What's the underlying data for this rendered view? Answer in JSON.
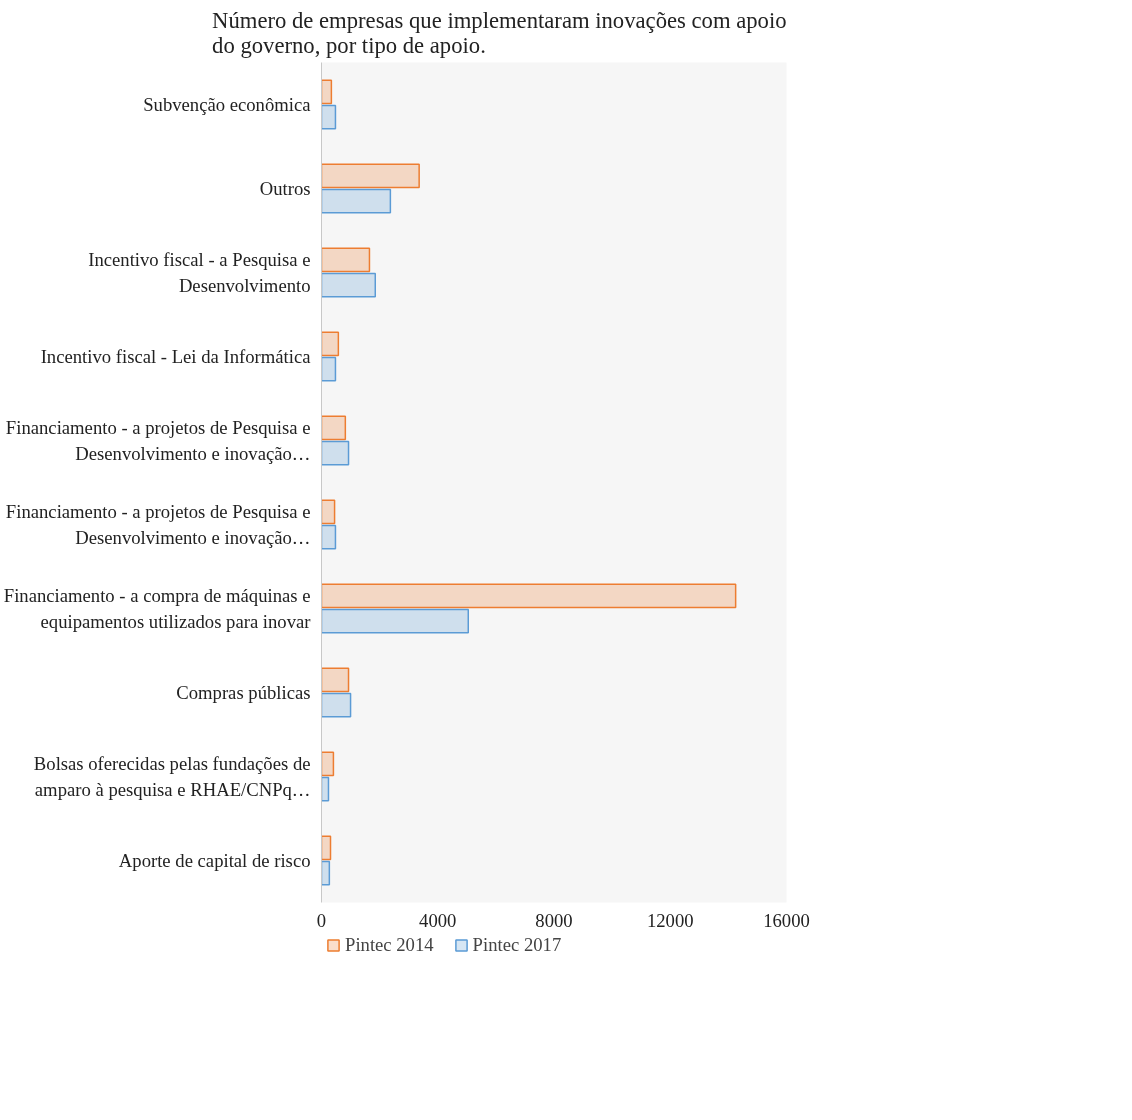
{
  "chart_data": {
    "type": "bar",
    "orientation": "horizontal",
    "title": "Número de empresas que implementaram inovações com apoio do governo, por tipo de apoio.",
    "categories": [
      "Subvenção econômica",
      "Outros",
      "Incentivo fiscal - a Pesquisa e Desenvolvimento",
      "Incentivo fiscal - Lei da Informática",
      "Financiamento - a projetos de Pesquisa e Desenvolvimento e inovação…",
      "Financiamento - a projetos de Pesquisa e Desenvolvimento e inovação…",
      "Financiamento - a compra de máquinas e equipamentos utilizados para inovar",
      "Compras públicas",
      "Bolsas oferecidas pelas fundações de amparo à pesquisa e RHAE/CNPq…",
      "Aporte de capital de risco"
    ],
    "series": [
      {
        "name": "Pintec 2014",
        "color": "#ed7d31",
        "values": [
          340,
          3360,
          1650,
          580,
          820,
          450,
          14250,
          930,
          410,
          310
        ]
      },
      {
        "name": "Pintec 2017",
        "color": "#5b9bd5",
        "values": [
          480,
          2370,
          1850,
          480,
          930,
          480,
          5050,
          1000,
          240,
          270
        ]
      }
    ],
    "xlim": [
      0,
      16000
    ],
    "xticks": [
      0,
      4000,
      8000,
      12000,
      16000
    ],
    "grid": false,
    "legend": "bottom left"
  }
}
